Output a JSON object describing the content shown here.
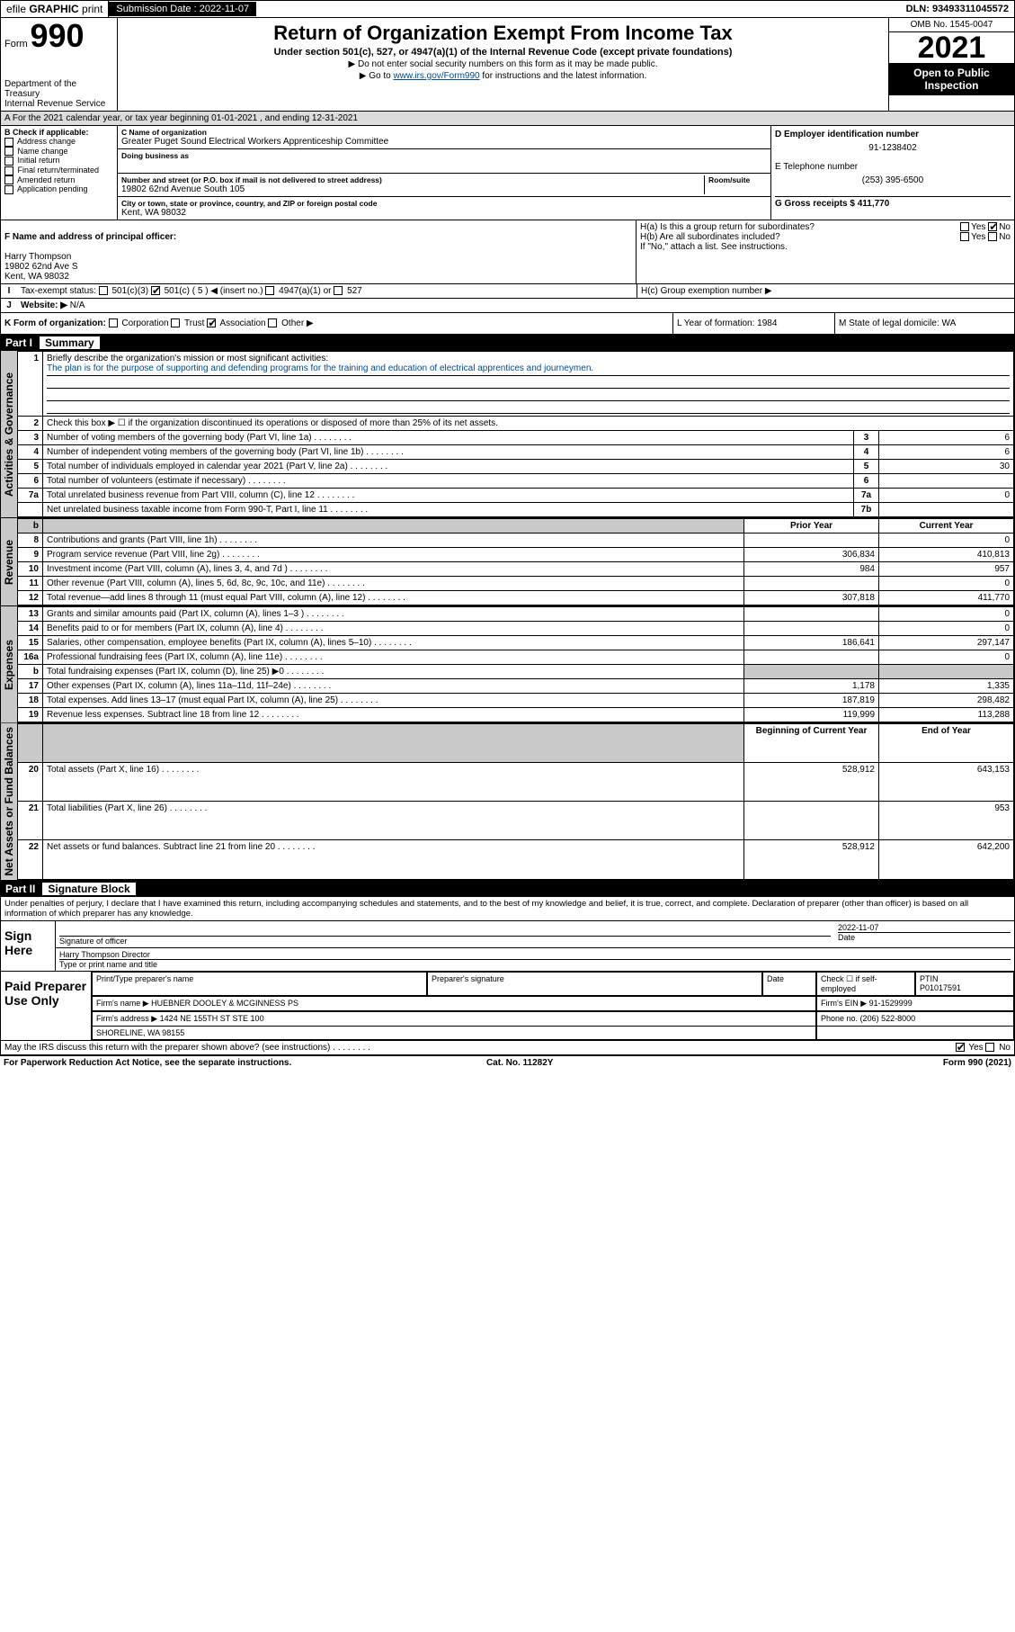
{
  "topbar": {
    "efile_pre": "efile ",
    "efile_b1": "GRAPHIC",
    "efile_mid": " print ",
    "sub_label": "Submission Date : 2022-11-07",
    "dln": "DLN: 93493311045572"
  },
  "header": {
    "form_pre": "Form",
    "form_num": "990",
    "dept": "Department of the Treasury\nInternal Revenue Service",
    "title": "Return of Organization Exempt From Income Tax",
    "sub": "Under section 501(c), 527, or 4947(a)(1) of the Internal Revenue Code (except private foundations)",
    "note1": "▶ Do not enter social security numbers on this form as it may be made public.",
    "note2_pre": "▶ Go to ",
    "note2_link": "www.irs.gov/Form990",
    "note2_post": " for instructions and the latest information.",
    "omb": "OMB No. 1545-0047",
    "year": "2021",
    "open": "Open to Public Inspection"
  },
  "taxyear": "A For the 2021 calendar year, or tax year beginning 01-01-2021   , and ending 12-31-2021",
  "B": {
    "title": "B Check if applicable:",
    "items": [
      "Address change",
      "Name change",
      "Initial return",
      "Final return/terminated",
      "Amended return",
      "Application pending"
    ]
  },
  "C": {
    "name_label": "C Name of organization",
    "name": "Greater Puget Sound Electrical Workers Apprenticeship Committee",
    "dba_label": "Doing business as",
    "addr_label": "Number and street (or P.O. box if mail is not delivered to street address)",
    "room_label": "Room/suite",
    "addr": "19802 62nd Avenue South 105",
    "city_label": "City or town, state or province, country, and ZIP or foreign postal code",
    "city": "Kent, WA  98032"
  },
  "D": {
    "label": "D Employer identification number",
    "val": "91-1238402",
    "E_label": "E Telephone number",
    "E_val": "(253) 395-6500",
    "G_label": "G Gross receipts $ 411,770"
  },
  "F": {
    "label": "F Name and address of principal officer:",
    "val": "Harry Thompson\n19802 62nd Ave S\nKent, WA  98032"
  },
  "H": {
    "a": "H(a)  Is this a group return for subordinates?",
    "a_yes": "Yes",
    "a_no": "No",
    "b": "H(b)  Are all subordinates included?",
    "b_yes": "Yes",
    "b_no": "No",
    "b_note": "If \"No,\" attach a list. See instructions.",
    "c": "H(c)  Group exemption number ▶"
  },
  "I": {
    "label": "Tax-exempt status:",
    "opts": [
      "501(c)(3)",
      "501(c) ( 5 ) ◀ (insert no.)",
      "4947(a)(1) or",
      "527"
    ]
  },
  "J": {
    "label": "Website: ▶",
    "val": "N/A"
  },
  "K": {
    "label": "K Form of organization:",
    "opts": [
      "Corporation",
      "Trust",
      "Association",
      "Other ▶"
    ]
  },
  "L": {
    "label": "L Year of formation: 1984"
  },
  "M": {
    "label": "M State of legal domicile: WA"
  },
  "part1": {
    "hdr": "Part I",
    "title": "Summary",
    "vtabs": [
      "Activities & Governance",
      "Revenue",
      "Expenses",
      "Net Assets or Fund Balances"
    ],
    "q1": "Briefly describe the organization's mission or most significant activities:",
    "mission": "The plan is for the purpose of supporting and defending programs for the training and education of electrical apprentices and journeymen.",
    "q2": "Check this box ▶ ☐  if the organization discontinued its operations or disposed of more than 25% of its net assets.",
    "rows_gov": [
      {
        "n": "3",
        "t": "Number of voting members of the governing body (Part VI, line 1a)",
        "box": "3",
        "v": "6"
      },
      {
        "n": "4",
        "t": "Number of independent voting members of the governing body (Part VI, line 1b)",
        "box": "4",
        "v": "6"
      },
      {
        "n": "5",
        "t": "Total number of individuals employed in calendar year 2021 (Part V, line 2a)",
        "box": "5",
        "v": "30"
      },
      {
        "n": "6",
        "t": "Total number of volunteers (estimate if necessary)",
        "box": "6",
        "v": ""
      },
      {
        "n": "7a",
        "t": "Total unrelated business revenue from Part VIII, column (C), line 12",
        "box": "7a",
        "v": "0"
      },
      {
        "n": "",
        "t": "Net unrelated business taxable income from Form 990-T, Part I, line 11",
        "box": "7b",
        "v": ""
      }
    ],
    "col_hdr": [
      "b",
      "",
      "Prior Year",
      "Current Year"
    ],
    "rows_rev": [
      {
        "n": "8",
        "t": "Contributions and grants (Part VIII, line 1h)",
        "py": "",
        "cy": "0"
      },
      {
        "n": "9",
        "t": "Program service revenue (Part VIII, line 2g)",
        "py": "306,834",
        "cy": "410,813"
      },
      {
        "n": "10",
        "t": "Investment income (Part VIII, column (A), lines 3, 4, and 7d )",
        "py": "984",
        "cy": "957"
      },
      {
        "n": "11",
        "t": "Other revenue (Part VIII, column (A), lines 5, 6d, 8c, 9c, 10c, and 11e)",
        "py": "",
        "cy": "0"
      },
      {
        "n": "12",
        "t": "Total revenue—add lines 8 through 11 (must equal Part VIII, column (A), line 12)",
        "py": "307,818",
        "cy": "411,770"
      }
    ],
    "rows_exp": [
      {
        "n": "13",
        "t": "Grants and similar amounts paid (Part IX, column (A), lines 1–3 )",
        "py": "",
        "cy": "0"
      },
      {
        "n": "14",
        "t": "Benefits paid to or for members (Part IX, column (A), line 4)",
        "py": "",
        "cy": "0"
      },
      {
        "n": "15",
        "t": "Salaries, other compensation, employee benefits (Part IX, column (A), lines 5–10)",
        "py": "186,641",
        "cy": "297,147"
      },
      {
        "n": "16a",
        "t": "Professional fundraising fees (Part IX, column (A), line 11e)",
        "py": "",
        "cy": "0"
      },
      {
        "n": "b",
        "t": "Total fundraising expenses (Part IX, column (D), line 25) ▶0",
        "py": "shade",
        "cy": "shade"
      },
      {
        "n": "17",
        "t": "Other expenses (Part IX, column (A), lines 11a–11d, 11f–24e)",
        "py": "1,178",
        "cy": "1,335"
      },
      {
        "n": "18",
        "t": "Total expenses. Add lines 13–17 (must equal Part IX, column (A), line 25)",
        "py": "187,819",
        "cy": "298,482"
      },
      {
        "n": "19",
        "t": "Revenue less expenses. Subtract line 18 from line 12",
        "py": "119,999",
        "cy": "113,288"
      }
    ],
    "na_hdr": [
      "",
      "",
      "Beginning of Current Year",
      "End of Year"
    ],
    "rows_na": [
      {
        "n": "20",
        "t": "Total assets (Part X, line 16)",
        "py": "528,912",
        "cy": "643,153"
      },
      {
        "n": "21",
        "t": "Total liabilities (Part X, line 26)",
        "py": "",
        "cy": "953"
      },
      {
        "n": "22",
        "t": "Net assets or fund balances. Subtract line 21 from line 20",
        "py": "528,912",
        "cy": "642,200"
      }
    ]
  },
  "part2": {
    "hdr": "Part II",
    "title": "Signature Block",
    "decl": "Under penalties of perjury, I declare that I have examined this return, including accompanying schedules and statements, and to the best of my knowledge and belief, it is true, correct, and complete. Declaration of preparer (other than officer) is based on all information of which preparer has any knowledge.",
    "sign": "Sign Here",
    "sig_of": "Signature of officer",
    "date_lab": "Date",
    "date": "2022-11-07",
    "name": "Harry Thompson  Director",
    "name_lab": "Type or print name and title",
    "paid": "Paid Preparer Use Only",
    "h": [
      "Print/Type preparer's name",
      "Preparer's signature",
      "Date"
    ],
    "check": "Check ☐ if self-employed",
    "ptin_lab": "PTIN",
    "ptin": "P01017591",
    "firm_lab": "Firm's name  ▶",
    "firm": "HUEBNER DOOLEY & MCGINNESS PS",
    "ein_lab": "Firm's EIN ▶",
    "ein": "91-1529999",
    "addr_lab": "Firm's address ▶",
    "addr": "1424 NE 155TH ST STE 100",
    "addr2": "SHORELINE, WA  98155",
    "phone_lab": "Phone no.",
    "phone": "(206) 522-8000",
    "discuss": "May the IRS discuss this return with the preparer shown above? (see instructions)",
    "d_yes": "Yes",
    "d_no": "No"
  },
  "footer": {
    "l": "For Paperwork Reduction Act Notice, see the separate instructions.",
    "m": "Cat. No. 11282Y",
    "r": "Form 990 (2021)"
  }
}
